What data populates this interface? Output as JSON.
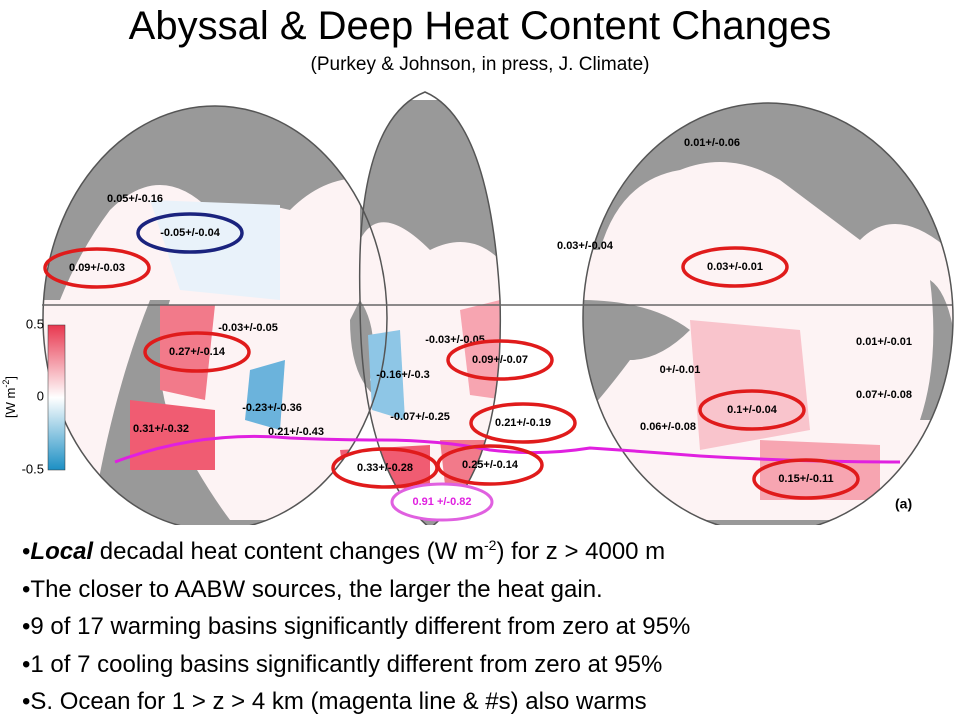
{
  "header": {
    "title": "Abyssal & Deep Heat Content Changes",
    "subtitle": "(Purkey & Johnson, in press, J. Climate)"
  },
  "map": {
    "labels": [
      "0.05+/-0.16",
      "-0.05+/-0.04",
      "0.09+/-0.03",
      "0.01+/-0.06",
      "0.03+/-0.04",
      "0.03+/-0.01",
      "-0.03+/-0.05",
      "0.27+/-0.14",
      "-0.03+/-0.05",
      "0.09+/-0.07",
      "-0.16+/-0.3",
      "0.01+/-0.01",
      "0+/-0.01",
      "0.07+/-0.08",
      "-0.23+/-0.36",
      "0.21+/-0.43",
      "-0.07+/-0.25",
      "0.21+/-0.19",
      "0.1+/-0.04",
      "0.31+/-0.32",
      "0.06+/-0.08",
      "0.33+/-0.28",
      "0.25+/-0.14",
      "0.15+/-0.11",
      "0.91 +/-0.82"
    ],
    "colorbar": {
      "label": "[W m",
      "label_sup": "-2",
      "label_end": "]",
      "ticks": [
        "0.5",
        "0",
        "-0.5"
      ]
    },
    "panel_label": "(a)"
  },
  "bullets": [
    {
      "emphasis": "Local",
      "text": " decadal heat content changes (W m",
      "sup": "-2",
      "after": ") for z > 4000 m"
    },
    "The closer to AABW sources, the larger the heat gain.",
    "9 of 17 warming basins significantly different from zero at 95%",
    "1 of 7 cooling basins significantly different from zero at 95%",
    "S. Ocean for 1 > z > 4 km (magenta line & #s) also warms"
  ]
}
